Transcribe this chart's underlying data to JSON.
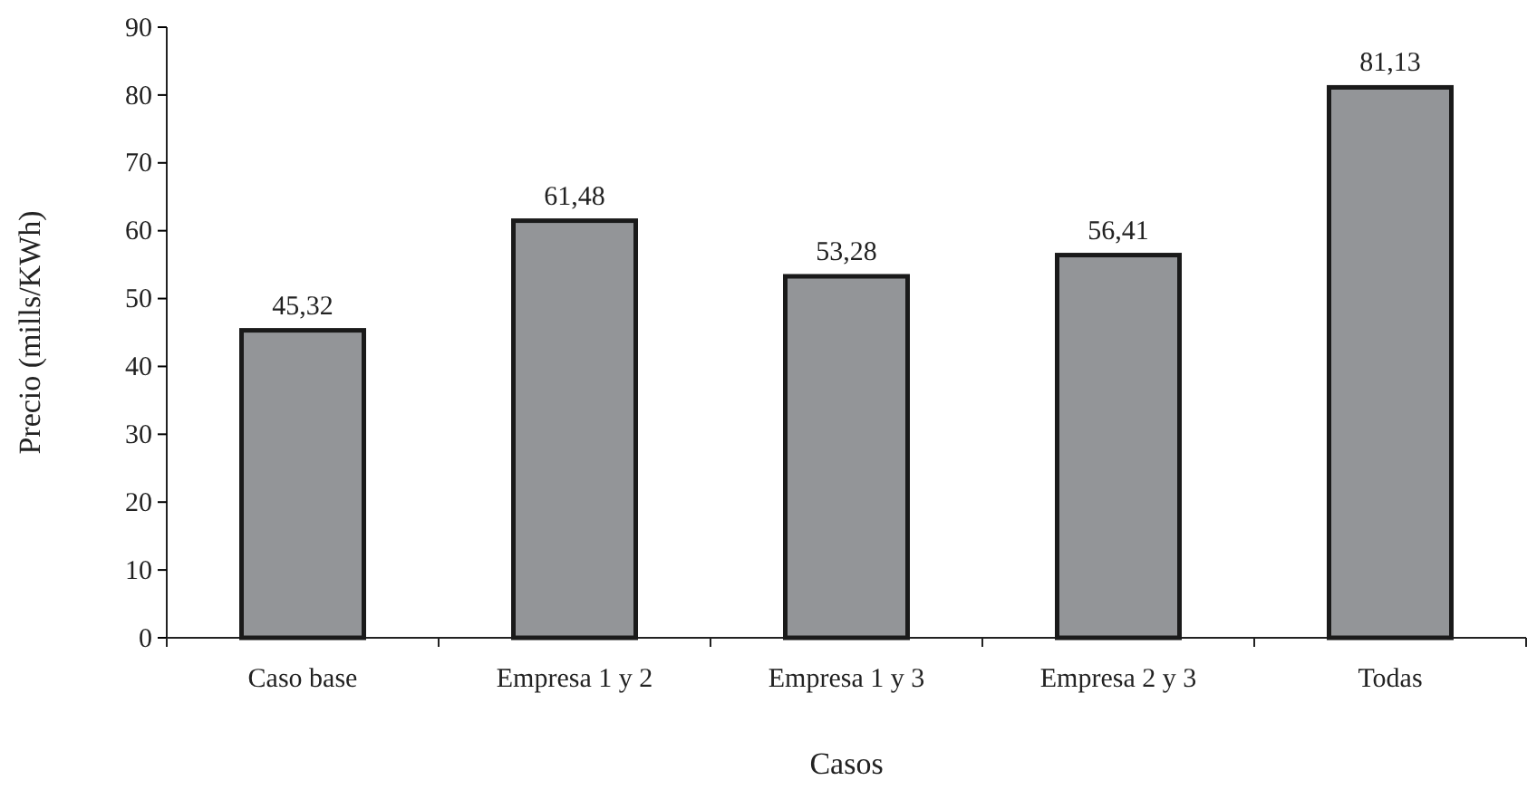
{
  "chart_data": {
    "type": "bar",
    "xlabel": "Casos",
    "ylabel": "Precio (mills/KWh)",
    "categories": [
      "Caso base",
      "Empresa 1 y 2",
      "Empresa 1 y 3",
      "Empresa 2 y 3",
      "Todas"
    ],
    "values": [
      45.32,
      61.48,
      53.28,
      56.41,
      81.13
    ],
    "value_labels": [
      "45,32",
      "61,48",
      "53,28",
      "56,41",
      "81,13"
    ],
    "color": "#939598",
    "ylim": [
      0,
      90
    ],
    "yticks": [
      0,
      10,
      20,
      30,
      40,
      50,
      60,
      70,
      80,
      90
    ],
    "grid": false
  }
}
